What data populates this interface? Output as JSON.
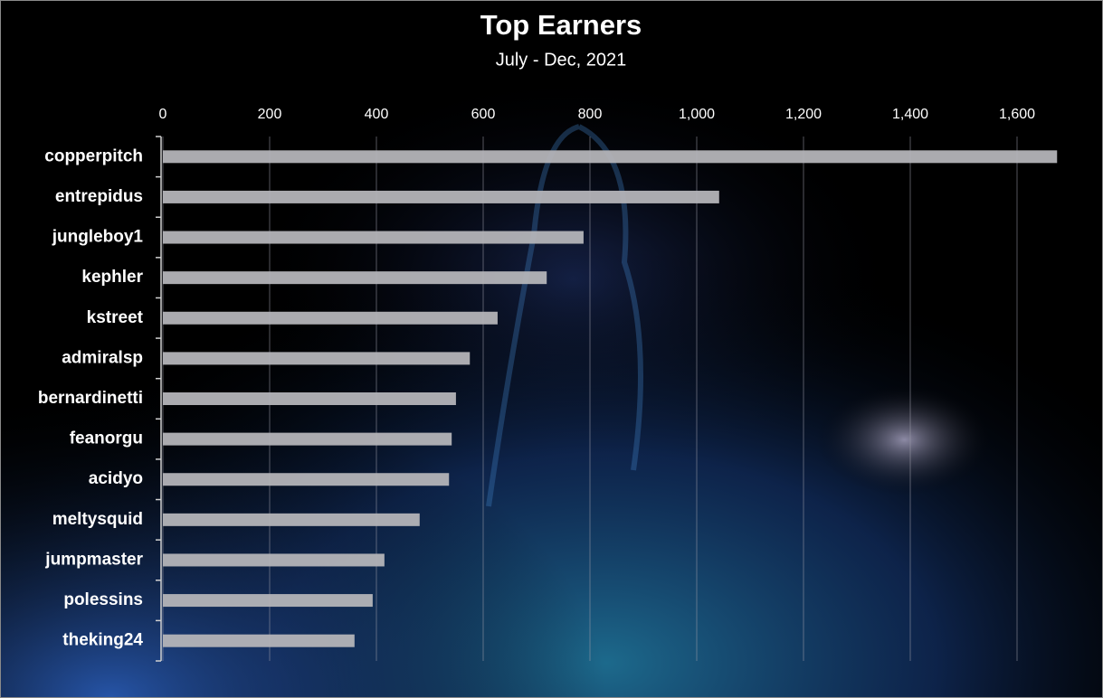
{
  "chart_data": {
    "type": "bar",
    "orientation": "horizontal",
    "title": "Top Earners",
    "subtitle": "July - Dec, 2021",
    "categories": [
      "copperpitch",
      "entrepidus",
      "jungleboy1",
      "kephler",
      "kstreet",
      "admiralsp",
      "bernardinetti",
      "feanorgu",
      "acidyo",
      "meltysquid",
      "jumpmaster",
      "polessins",
      "theking24"
    ],
    "values": [
      1675,
      1042,
      788,
      719,
      627,
      575,
      549,
      541,
      536,
      481,
      415,
      393,
      359
    ],
    "color": "#b4b4b8",
    "xlim": [
      0,
      1700
    ],
    "xticks": [
      0,
      200,
      400,
      600,
      800,
      {
        "value": 1000,
        "label": "1,000"
      },
      {
        "value": 1200,
        "label": "1,200"
      },
      {
        "value": 1400,
        "label": "1,400"
      },
      {
        "value": 1600,
        "label": "1,600"
      }
    ],
    "grid": true
  }
}
